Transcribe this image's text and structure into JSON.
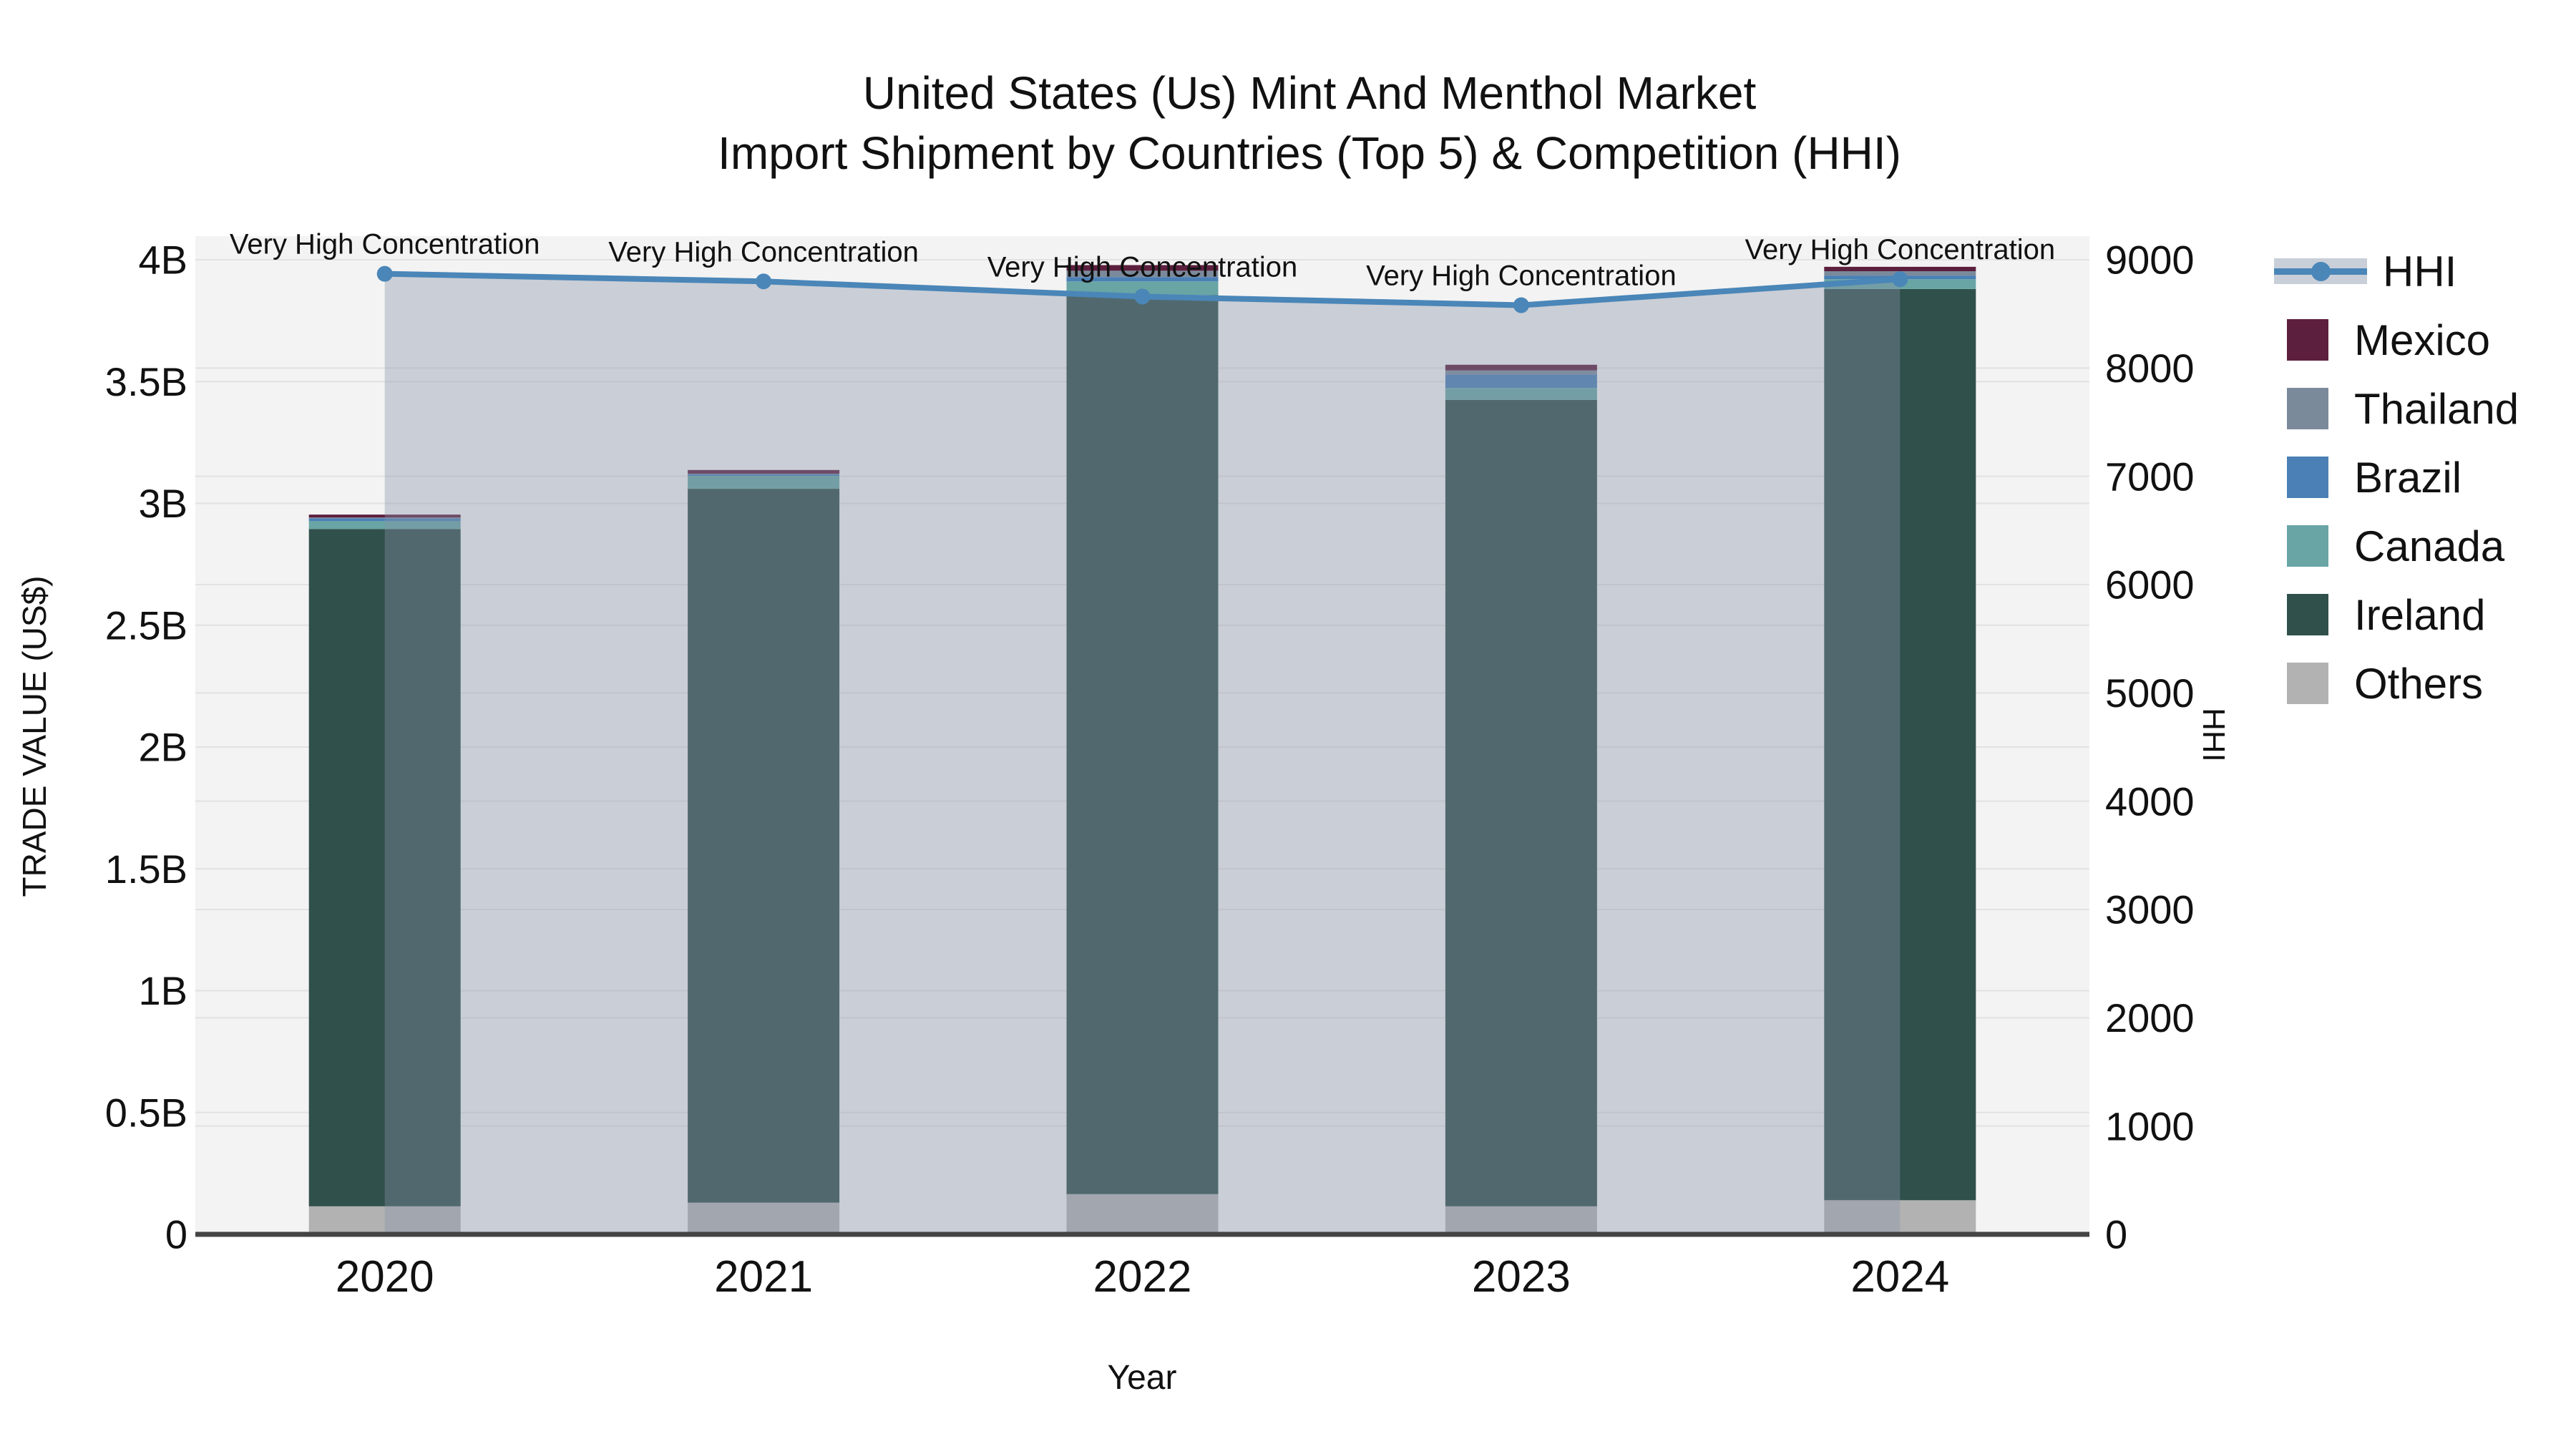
{
  "title": {
    "line1": "United States (Us) Mint And Menthol Market",
    "line2": "Import Shipment by Countries (Top 5) & Competition (HHI)"
  },
  "axes": {
    "left": {
      "title": "TRADE VALUE (US$)",
      "ticks": [
        {
          "label": "0",
          "value": 0
        },
        {
          "label": "0.5B",
          "value": 0.5
        },
        {
          "label": "1B",
          "value": 1
        },
        {
          "label": "1.5B",
          "value": 1.5
        },
        {
          "label": "2B",
          "value": 2
        },
        {
          "label": "2.5B",
          "value": 2.5
        },
        {
          "label": "3B",
          "value": 3
        },
        {
          "label": "3.5B",
          "value": 3.5
        },
        {
          "label": "4B",
          "value": 4
        }
      ]
    },
    "right": {
      "title": "HHI",
      "ticks": [
        {
          "label": "0",
          "value": 0
        },
        {
          "label": "1000",
          "value": 1000
        },
        {
          "label": "2000",
          "value": 2000
        },
        {
          "label": "3000",
          "value": 3000
        },
        {
          "label": "4000",
          "value": 4000
        },
        {
          "label": "5000",
          "value": 5000
        },
        {
          "label": "6000",
          "value": 6000
        },
        {
          "label": "7000",
          "value": 7000
        },
        {
          "label": "8000",
          "value": 8000
        },
        {
          "label": "9000",
          "value": 9000
        }
      ]
    },
    "x": {
      "title": "Year",
      "ticks": [
        "2020",
        "2021",
        "2022",
        "2023",
        "2024"
      ]
    }
  },
  "colors": {
    "plot_bg": "#f3f3f3",
    "grid": "#e2e2e2",
    "baseline": "#444444",
    "hhi_line": "#4a86b8",
    "hhi_band": "rgba(136,146,168,0.38)",
    "legend_band": "#c9cfd8",
    "text": "#111111"
  },
  "legend": {
    "items": [
      {
        "label": "HHI",
        "type": "line",
        "color": "#4a86b8"
      },
      {
        "label": "Mexico",
        "type": "square",
        "color": "#5c1f3e"
      },
      {
        "label": "Thailand",
        "type": "square",
        "color": "#7b8a9b"
      },
      {
        "label": "Brazil",
        "type": "square",
        "color": "#4a80b5"
      },
      {
        "label": "Canada",
        "type": "square",
        "color": "#68a5a4"
      },
      {
        "label": "Ireland",
        "type": "square",
        "color": "#30504b"
      },
      {
        "label": "Others",
        "type": "square",
        "color": "#b2b2b2"
      }
    ]
  },
  "chart_data": {
    "type": "bar",
    "subtype": "stacked-bars-with-line",
    "title": "United States (Us) Mint And Menthol Market Import Shipment by Countries (Top 5) & Competition (HHI)",
    "xlabel": "Year",
    "ylabel": "TRADE VALUE (US$)",
    "y2label": "HHI",
    "ylim": [
      0,
      4.0
    ],
    "y2lim": [
      0,
      9000
    ],
    "grid": true,
    "legend_position": "right",
    "categories": [
      "2020",
      "2021",
      "2022",
      "2023",
      "2024"
    ],
    "units": "billions USD",
    "series": [
      {
        "name": "Others",
        "color": "#b2b2b2",
        "values": [
          0.115,
          0.13,
          0.165,
          0.115,
          0.14
        ]
      },
      {
        "name": "Ireland",
        "color": "#30504b",
        "values": [
          2.78,
          2.93,
          3.69,
          3.31,
          3.74
        ]
      },
      {
        "name": "Canada",
        "color": "#68a5a4",
        "values": [
          0.032,
          0.053,
          0.056,
          0.049,
          0.04
        ]
      },
      {
        "name": "Brazil",
        "color": "#4a80b5",
        "values": [
          0.012,
          0.006,
          0.018,
          0.055,
          0.015
        ]
      },
      {
        "name": "Thailand",
        "color": "#7b8a9b",
        "values": [
          0.003,
          0.003,
          0.026,
          0.017,
          0.018
        ]
      },
      {
        "name": "Mexico",
        "color": "#5c1f3e",
        "values": [
          0.012,
          0.015,
          0.023,
          0.023,
          0.018
        ]
      }
    ],
    "bar_totals": [
      2.954,
      3.137,
      3.978,
      3.569,
      3.971
    ],
    "line_series": {
      "name": "HHI",
      "axis": "y2",
      "color": "#4a86b8",
      "values": [
        8870,
        8800,
        8660,
        8580,
        8820
      ],
      "band_fill": "rgba(136,146,168,0.38)"
    },
    "annotations": [
      "Very High Concentration",
      "Very High Concentration",
      "Very High Concentration",
      "Very High Concentration",
      "Very High Concentration"
    ]
  }
}
